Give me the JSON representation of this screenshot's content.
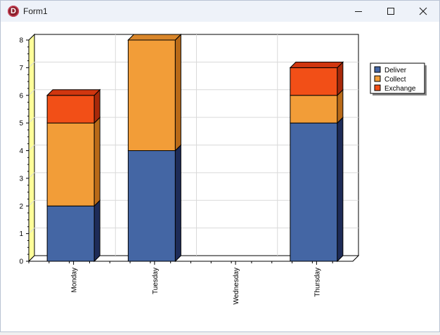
{
  "window": {
    "title": "Form1",
    "icon": "delphi-app-icon",
    "icon_letter": "D",
    "controls": [
      "minimize",
      "maximize",
      "close"
    ]
  },
  "chart_data": {
    "type": "bar",
    "stacked": true,
    "three_d": true,
    "categories": [
      "Monday",
      "Tuesday",
      "Wednesday",
      "Thursday"
    ],
    "series": [
      {
        "name": "Deliver",
        "color": "#4466a4",
        "side": "#1e2c58",
        "top": "#5c7fc0",
        "values": [
          2,
          4,
          0,
          5
        ]
      },
      {
        "name": "Collect",
        "color": "#f29d38",
        "side": "#b96a18",
        "top": "#d9862a",
        "values": [
          3,
          4,
          0,
          1
        ]
      },
      {
        "name": "Exchange",
        "color": "#f24f17",
        "side": "#a8290a",
        "top": "#d0360f",
        "values": [
          1,
          0,
          0,
          1
        ]
      }
    ],
    "yticks": [
      "0",
      "1",
      "2",
      "3",
      "4",
      "5",
      "6",
      "7",
      "8"
    ],
    "ylim": [
      0,
      8
    ],
    "grid": true,
    "legend": "right",
    "wall_color": "#ffff99",
    "title": "",
    "xlabel": "",
    "ylabel": ""
  }
}
